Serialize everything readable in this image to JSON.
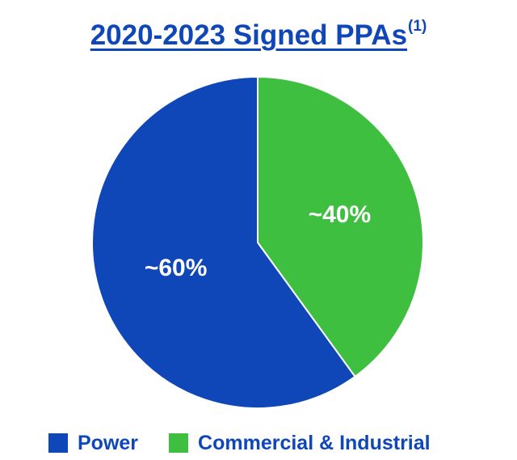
{
  "chart_data": {
    "type": "pie",
    "title": "2020-2023 Signed PPAs",
    "title_footnote": "(1)",
    "categories": [
      "Commercial & Industrial",
      "Power"
    ],
    "values": [
      40,
      60
    ],
    "labels": [
      "~40%",
      "~60%"
    ],
    "colors": [
      "#3fbf3f",
      "#0f47b8"
    ],
    "legend": {
      "placement": "bottom",
      "order": [
        "Power",
        "Commercial & Industrial"
      ]
    },
    "start_angle": "12 o'clock",
    "direction": "clockwise",
    "slice_border_color": "#ffffff"
  }
}
